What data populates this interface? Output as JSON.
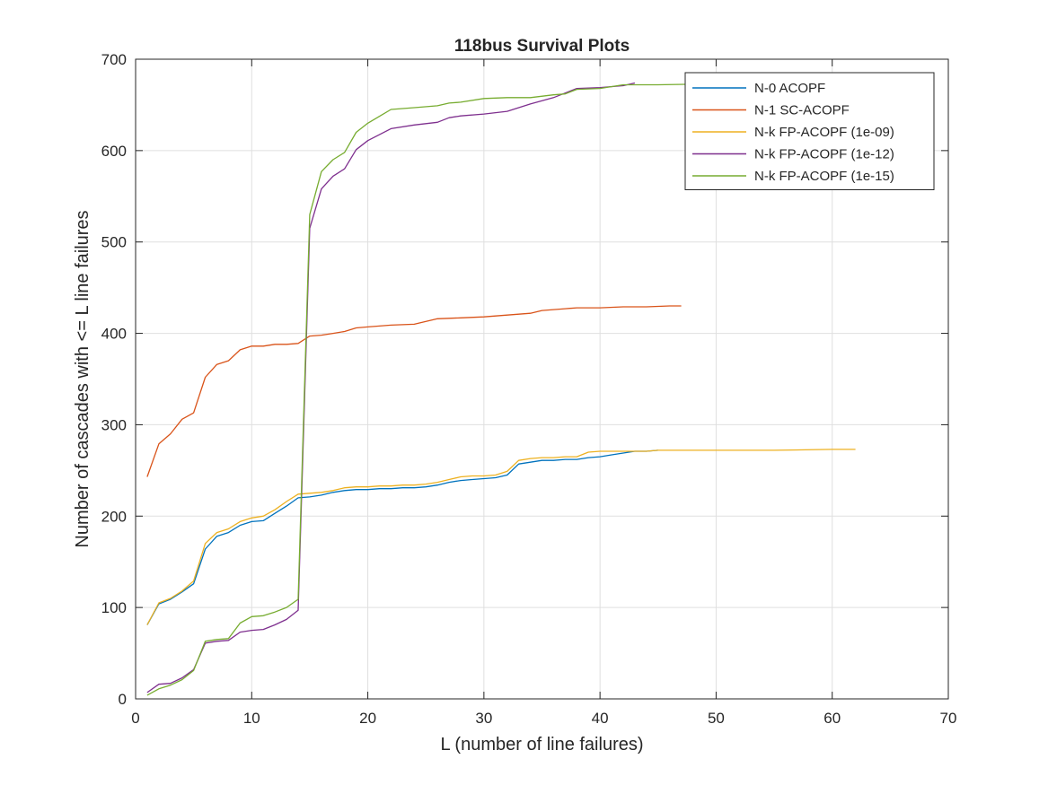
{
  "chart_data": {
    "type": "line",
    "title": "118bus Survival Plots",
    "xlabel": "L (number of line failures)",
    "ylabel": "Number of cascades with <= L line failures",
    "xlim": [
      0,
      70
    ],
    "ylim": [
      0,
      700
    ],
    "xticks": [
      0,
      10,
      20,
      30,
      40,
      50,
      60,
      70
    ],
    "yticks": [
      0,
      100,
      200,
      300,
      400,
      500,
      600,
      700
    ],
    "grid": true,
    "legend_position": "top-right",
    "series": [
      {
        "name": "N-0 ACOPF",
        "color": "#0072BD",
        "x": [
          1,
          2,
          3,
          4,
          5,
          6,
          7,
          8,
          9,
          10,
          11,
          12,
          13,
          14,
          15,
          16,
          17,
          18,
          19,
          20,
          21,
          22,
          23,
          24,
          25,
          26,
          27,
          28,
          29,
          30,
          31,
          32,
          33,
          34,
          35,
          36,
          37,
          38,
          39,
          40,
          41,
          42,
          43,
          44,
          45
        ],
        "y": [
          81,
          104,
          109,
          117,
          126,
          164,
          178,
          182,
          190,
          194,
          195,
          203,
          211,
          220,
          221,
          223,
          226,
          228,
          229,
          229,
          230,
          230,
          231,
          231,
          232,
          234,
          237,
          239,
          240,
          241,
          242,
          245,
          257,
          259,
          261,
          261,
          262,
          262,
          264,
          265,
          267,
          269,
          271,
          271,
          272
        ]
      },
      {
        "name": "N-1 SC-ACOPF",
        "color": "#D95319",
        "x": [
          1,
          2,
          3,
          4,
          5,
          6,
          7,
          8,
          9,
          10,
          11,
          12,
          13,
          14,
          15,
          16,
          17,
          18,
          19,
          20,
          22,
          24,
          26,
          28,
          30,
          32,
          34,
          35,
          36,
          37,
          38,
          40,
          42,
          44,
          46,
          47
        ],
        "y": [
          243,
          279,
          290,
          306,
          313,
          352,
          366,
          370,
          382,
          386,
          386,
          388,
          388,
          389,
          397,
          398,
          400,
          402,
          406,
          407,
          409,
          410,
          416,
          417,
          418,
          420,
          422,
          425,
          426,
          427,
          428,
          428,
          429,
          429,
          430,
          430
        ]
      },
      {
        "name": "N-k FP-ACOPF (1e-09)",
        "color": "#EDB120",
        "x": [
          1,
          2,
          3,
          4,
          5,
          6,
          7,
          8,
          9,
          10,
          11,
          12,
          13,
          14,
          15,
          16,
          17,
          18,
          19,
          20,
          21,
          22,
          23,
          24,
          25,
          26,
          27,
          28,
          29,
          30,
          31,
          32,
          33,
          34,
          35,
          36,
          37,
          38,
          39,
          40,
          41,
          42,
          43,
          44,
          45,
          50,
          55,
          60,
          62
        ],
        "y": [
          81,
          105,
          110,
          118,
          129,
          170,
          182,
          186,
          194,
          198,
          200,
          207,
          216,
          224,
          225,
          226,
          228,
          231,
          232,
          232,
          233,
          233,
          234,
          234,
          235,
          237,
          240,
          243,
          244,
          244,
          245,
          249,
          261,
          263,
          264,
          264,
          265,
          265,
          270,
          271,
          271,
          271,
          271,
          271,
          272,
          272,
          272,
          273,
          273
        ]
      },
      {
        "name": "N-k FP-ACOPF (1e-12)",
        "color": "#7E2F8E",
        "x": [
          1,
          2,
          3,
          4,
          5,
          6,
          7,
          8,
          9,
          10,
          11,
          12,
          13,
          14,
          15,
          16,
          17,
          18,
          19,
          20,
          22,
          24,
          26,
          27,
          28,
          30,
          32,
          34,
          36,
          37,
          38,
          40,
          42,
          43
        ],
        "y": [
          7,
          16,
          17,
          23,
          32,
          61,
          63,
          64,
          73,
          75,
          76,
          81,
          87,
          97,
          515,
          558,
          572,
          580,
          601,
          611,
          624,
          628,
          631,
          636,
          638,
          640,
          643,
          651,
          658,
          663,
          668,
          669,
          671,
          674
        ]
      },
      {
        "name": "N-k FP-ACOPF (1e-15)",
        "color": "#77AC30",
        "x": [
          1,
          2,
          3,
          4,
          5,
          6,
          7,
          8,
          9,
          10,
          11,
          12,
          13,
          14,
          15,
          16,
          17,
          18,
          19,
          20,
          22,
          24,
          26,
          27,
          28,
          30,
          32,
          34,
          36,
          37,
          38,
          40,
          42,
          45,
          50,
          55
        ],
        "y": [
          4,
          11,
          15,
          21,
          31,
          63,
          65,
          66,
          83,
          90,
          91,
          95,
          100,
          109,
          530,
          577,
          590,
          598,
          620,
          630,
          645,
          647,
          649,
          652,
          653,
          657,
          658,
          658,
          661,
          662,
          667,
          668,
          672,
          672,
          673,
          673
        ]
      }
    ]
  }
}
